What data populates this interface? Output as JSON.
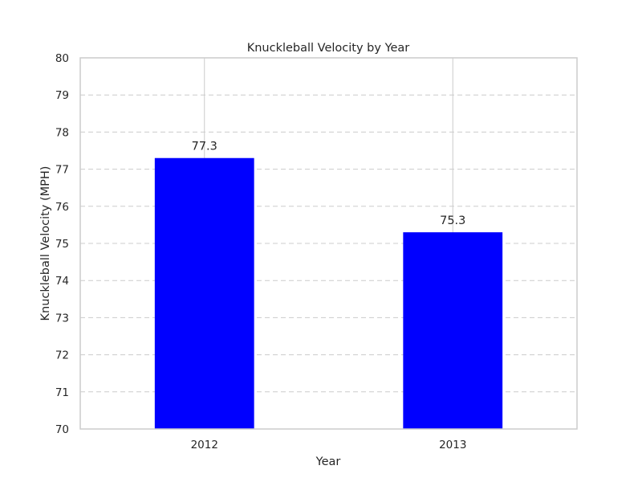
{
  "chart_data": {
    "type": "bar",
    "title": "Knuckleball Velocity by Year",
    "xlabel": "Year",
    "ylabel": "Knuckleball Velocity (MPH)",
    "categories": [
      "2012",
      "2013"
    ],
    "values": [
      77.3,
      75.3
    ],
    "data_labels": [
      "77.3",
      "75.3"
    ],
    "ylim": [
      70,
      80
    ],
    "yticks": [
      70,
      71,
      72,
      73,
      74,
      75,
      76,
      77,
      78,
      79,
      80
    ],
    "ytick_labels": [
      "70",
      "71",
      "72",
      "73",
      "74",
      "75",
      "76",
      "77",
      "78",
      "79",
      "80"
    ],
    "grid": "on (dashed horizontal, solid vertical)",
    "legend": "none",
    "colors": {
      "bar": "#0000ff",
      "grid": "#cccccc",
      "axes": "#cccccc",
      "text": "#262626"
    }
  }
}
